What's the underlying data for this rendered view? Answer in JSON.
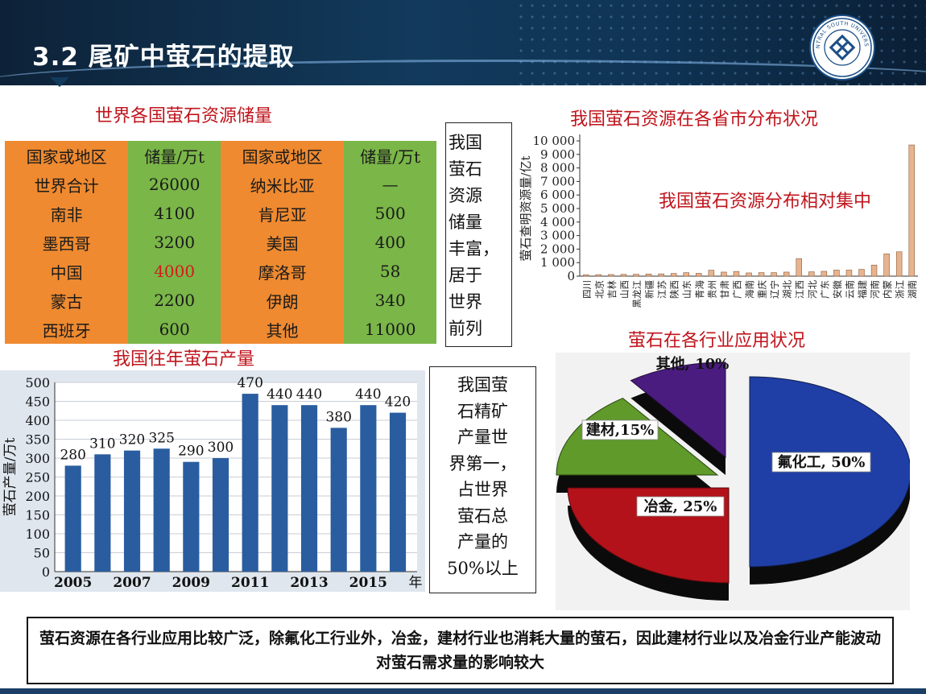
{
  "header": {
    "title": "3.2 尾矿中萤石的提取",
    "logo_text": "CENTRAL SOUTH UNIVERSITY",
    "logo_icon": "university-seal-icon"
  },
  "reserves_table": {
    "title": "世界各国萤石资源储量",
    "headers": [
      "国家或地区",
      "储量/万t",
      "国家或地区",
      "储量/万t"
    ],
    "rows": [
      [
        "世界合计",
        "26000",
        "纳米比亚",
        "—"
      ],
      [
        "南非",
        "4100",
        "肯尼亚",
        "500"
      ],
      [
        "墨西哥",
        "3200",
        "美国",
        "400"
      ],
      [
        "中国",
        "4000",
        "摩洛哥",
        "58"
      ],
      [
        "蒙古",
        "2200",
        "伊朗",
        "340"
      ],
      [
        "西班牙",
        "600",
        "其他",
        "11000"
      ]
    ],
    "highlight_color": "#d41b1b"
  },
  "reserves_note": [
    "我国",
    "萤石",
    "资源",
    "储量",
    "丰富，",
    "居于",
    "世界",
    "前列"
  ],
  "production_note": [
    "我国萤",
    "石精矿",
    "产量世",
    "界第一，",
    "占世界",
    "萤石总",
    "产量的",
    "50%以上"
  ],
  "conclusion": "萤石资源在各行业应用比较广泛，除氟化工行业外，冶金，建材行业也消耗大量的萤石，因此建材行业以及冶金行业产能波动对萤石需求量的影响较大",
  "chart_data": [
    {
      "type": "bar",
      "title": "我国萤石资源在各省市分布状况",
      "annotation": "我国萤石资源分布相对集中",
      "ylabel": "萤石查明资源量/亿t",
      "ylim": [
        0,
        10000
      ],
      "yticks": [
        "0",
        "1 000",
        "2 000",
        "3 000",
        "4 000",
        "5 000",
        "6 000",
        "7 000",
        "8 000",
        "9 000",
        "10 000"
      ],
      "categories": [
        "四川",
        "北京",
        "吉林",
        "山西",
        "黑龙江",
        "新疆",
        "江苏",
        "陕西",
        "山东",
        "青海",
        "贵州",
        "甘肃",
        "广西",
        "海南",
        "重庆",
        "辽宁",
        "湖北",
        "江西",
        "河北",
        "广东",
        "安徽",
        "云南",
        "福建",
        "河南",
        "内蒙",
        "浙江",
        "湖南"
      ],
      "values": [
        100,
        110,
        120,
        130,
        140,
        160,
        170,
        200,
        260,
        210,
        440,
        300,
        350,
        240,
        260,
        260,
        300,
        1300,
        320,
        360,
        450,
        450,
        500,
        820,
        1650,
        1800,
        9700
      ],
      "bar_color": "#e7b48f"
    },
    {
      "type": "bar",
      "title": "我国往年萤石产量",
      "ylabel": "萤石产量/万t",
      "xlabel": "年",
      "ylim": [
        0,
        500
      ],
      "yticks": [
        "0",
        "50",
        "100",
        "150",
        "200",
        "250",
        "300",
        "350",
        "400",
        "450",
        "500"
      ],
      "x": [
        2005,
        2006,
        2007,
        2008,
        2009,
        2010,
        2011,
        2012,
        2013,
        2014,
        2015,
        2016
      ],
      "x_tick_labels": [
        "2005",
        "2007",
        "2009",
        "2011",
        "2013",
        "2015"
      ],
      "values": [
        280,
        310,
        320,
        325,
        290,
        300,
        470,
        440,
        440,
        380,
        440,
        420
      ],
      "bar_color": "#2a5d9f",
      "grid": true
    },
    {
      "type": "pie",
      "title": "萤石在各行业应用状况",
      "labels": [
        "氟化工, 50%",
        "冶金, 25%",
        "建材,15%",
        "其他, 10%"
      ],
      "values": [
        50,
        25,
        15,
        10
      ],
      "colors": [
        "#1f3fa6",
        "#b4121a",
        "#5f9a2a",
        "#4b1c80"
      ]
    }
  ]
}
